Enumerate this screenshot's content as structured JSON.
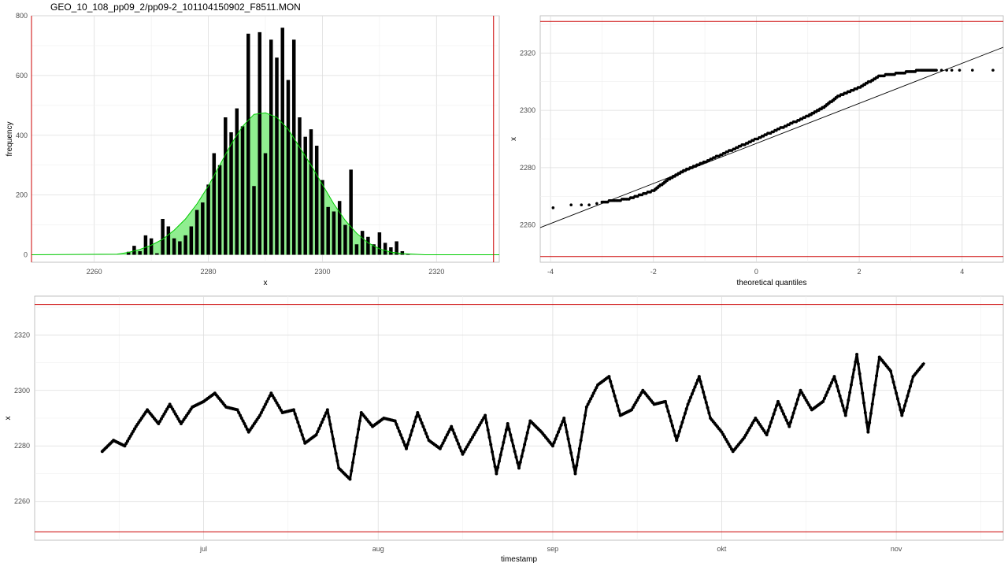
{
  "title": "GEO_10_108_pp09_2/pp09-2_101104150902_F8511.MON",
  "colors": {
    "limit": "#cc0000",
    "density_fill": "#90ee90",
    "density_line": "#00cc00",
    "points": "#000000",
    "grid": "#dddddd"
  },
  "chart_data": [
    {
      "type": "bar",
      "xlabel": "x",
      "ylabel": "frequency",
      "xlim": [
        2249,
        2331
      ],
      "ylim": [
        -25,
        800
      ],
      "xticks": [
        2260,
        2280,
        2300,
        2320
      ],
      "yticks": [
        0,
        200,
        400,
        600,
        800
      ],
      "limit_lines_x": [
        2249,
        2330
      ],
      "bins": [
        {
          "x": 2266,
          "y": 10
        },
        {
          "x": 2267,
          "y": 30
        },
        {
          "x": 2268,
          "y": 12
        },
        {
          "x": 2269,
          "y": 65
        },
        {
          "x": 2270,
          "y": 55
        },
        {
          "x": 2271,
          "y": 5
        },
        {
          "x": 2272,
          "y": 120
        },
        {
          "x": 2273,
          "y": 95
        },
        {
          "x": 2274,
          "y": 55
        },
        {
          "x": 2275,
          "y": 45
        },
        {
          "x": 2276,
          "y": 65
        },
        {
          "x": 2277,
          "y": 95
        },
        {
          "x": 2278,
          "y": 150
        },
        {
          "x": 2279,
          "y": 175
        },
        {
          "x": 2280,
          "y": 235
        },
        {
          "x": 2281,
          "y": 340
        },
        {
          "x": 2282,
          "y": 300
        },
        {
          "x": 2283,
          "y": 460
        },
        {
          "x": 2284,
          "y": 410
        },
        {
          "x": 2285,
          "y": 490
        },
        {
          "x": 2286,
          "y": 430
        },
        {
          "x": 2287,
          "y": 740
        },
        {
          "x": 2288,
          "y": 230
        },
        {
          "x": 2289,
          "y": 745
        },
        {
          "x": 2290,
          "y": 340
        },
        {
          "x": 2291,
          "y": 720
        },
        {
          "x": 2292,
          "y": 660
        },
        {
          "x": 2293,
          "y": 760
        },
        {
          "x": 2294,
          "y": 585
        },
        {
          "x": 2295,
          "y": 720
        },
        {
          "x": 2296,
          "y": 460
        },
        {
          "x": 2297,
          "y": 395
        },
        {
          "x": 2298,
          "y": 420
        },
        {
          "x": 2299,
          "y": 365
        },
        {
          "x": 2300,
          "y": 250
        },
        {
          "x": 2301,
          "y": 160
        },
        {
          "x": 2302,
          "y": 145
        },
        {
          "x": 2303,
          "y": 180
        },
        {
          "x": 2304,
          "y": 100
        },
        {
          "x": 2305,
          "y": 285
        },
        {
          "x": 2306,
          "y": 35
        },
        {
          "x": 2307,
          "y": 80
        },
        {
          "x": 2308,
          "y": 60
        },
        {
          "x": 2309,
          "y": 35
        },
        {
          "x": 2310,
          "y": 75
        },
        {
          "x": 2311,
          "y": 40
        },
        {
          "x": 2312,
          "y": 25
        },
        {
          "x": 2313,
          "y": 45
        },
        {
          "x": 2314,
          "y": 12
        },
        {
          "x": 2315,
          "y": 2
        }
      ],
      "density": {
        "x": [
          2249,
          2264,
          2266,
          2268,
          2270,
          2272,
          2274,
          2276,
          2278,
          2280,
          2282,
          2284,
          2286,
          2288,
          2290,
          2292,
          2294,
          2296,
          2298,
          2300,
          2302,
          2304,
          2306,
          2308,
          2310,
          2312,
          2314,
          2316,
          2318,
          2331
        ],
        "y": [
          0,
          2,
          8,
          18,
          32,
          52,
          82,
          120,
          170,
          230,
          300,
          370,
          430,
          470,
          475,
          460,
          420,
          360,
          300,
          235,
          170,
          115,
          72,
          40,
          20,
          9,
          4,
          2,
          0,
          0
        ]
      }
    },
    {
      "type": "scatter",
      "subtype": "qq",
      "xlabel": "theoretical quantiles",
      "ylabel": "x",
      "xlim": [
        -4.2,
        4.8
      ],
      "ylim": [
        2247,
        2333
      ],
      "xticks": [
        -4,
        -2,
        0,
        2,
        4
      ],
      "yticks": [
        2260,
        2280,
        2300,
        2320
      ],
      "limit_lines_y": [
        2249,
        2331
      ],
      "reference_line": {
        "x": [
          -4.5,
          4.8
        ],
        "y": [
          2257,
          2322
        ]
      },
      "quantile_curve": {
        "x": [
          -3.0,
          -2.5,
          -2.0,
          -1.7,
          -1.4,
          -1.0,
          -0.5,
          0.0,
          0.5,
          1.0,
          1.3,
          1.6,
          2.0,
          2.4,
          2.8,
          3.2,
          3.5
        ],
        "y": [
          2268,
          2269,
          2272,
          2276,
          2279,
          2282,
          2286,
          2290,
          2294,
          2298,
          2301,
          2305,
          2308,
          2312,
          2313,
          2314,
          2314
        ]
      },
      "tail_points": [
        {
          "x": -3.95,
          "y": 2266
        },
        {
          "x": -3.6,
          "y": 2267
        },
        {
          "x": -3.4,
          "y": 2267
        },
        {
          "x": -3.25,
          "y": 2267
        },
        {
          "x": -3.1,
          "y": 2267.5
        },
        {
          "x": 3.5,
          "y": 2314
        },
        {
          "x": 3.6,
          "y": 2314
        },
        {
          "x": 3.7,
          "y": 2314
        },
        {
          "x": 3.8,
          "y": 2314
        },
        {
          "x": 3.95,
          "y": 2314
        },
        {
          "x": 4.2,
          "y": 2314
        },
        {
          "x": 4.6,
          "y": 2314
        }
      ]
    },
    {
      "type": "line",
      "xlabel": "timestamp",
      "ylabel": "x",
      "xlim": [
        "2010-06-01",
        "2010-11-20"
      ],
      "ylim": [
        2246,
        2334
      ],
      "xticks": [
        {
          "label": "jul",
          "date": "2010-07-01"
        },
        {
          "label": "aug",
          "date": "2010-08-01"
        },
        {
          "label": "sep",
          "date": "2010-09-01"
        },
        {
          "label": "okt",
          "date": "2010-10-01"
        },
        {
          "label": "nov",
          "date": "2010-11-01"
        }
      ],
      "yticks": [
        2260,
        2280,
        2300,
        2320
      ],
      "limit_lines_y": [
        2249,
        2331
      ],
      "series": {
        "dates": [
          "2010-06-13",
          "2010-06-15",
          "2010-06-17",
          "2010-06-19",
          "2010-06-21",
          "2010-06-23",
          "2010-06-25",
          "2010-06-27",
          "2010-06-29",
          "2010-07-01",
          "2010-07-03",
          "2010-07-05",
          "2010-07-07",
          "2010-07-09",
          "2010-07-11",
          "2010-07-13",
          "2010-07-15",
          "2010-07-17",
          "2010-07-19",
          "2010-07-21",
          "2010-07-23",
          "2010-07-25",
          "2010-07-27",
          "2010-07-29",
          "2010-07-31",
          "2010-08-02",
          "2010-08-04",
          "2010-08-06",
          "2010-08-08",
          "2010-08-10",
          "2010-08-12",
          "2010-08-14",
          "2010-08-16",
          "2010-08-18",
          "2010-08-20",
          "2010-08-22",
          "2010-08-24",
          "2010-08-26",
          "2010-08-28",
          "2010-08-30",
          "2010-09-01",
          "2010-09-03",
          "2010-09-05",
          "2010-09-07",
          "2010-09-09",
          "2010-09-11",
          "2010-09-13",
          "2010-09-15",
          "2010-09-17",
          "2010-09-19",
          "2010-09-21",
          "2010-09-23",
          "2010-09-25",
          "2010-09-27",
          "2010-09-29",
          "2010-10-01",
          "2010-10-03",
          "2010-10-05",
          "2010-10-07",
          "2010-10-09",
          "2010-10-11",
          "2010-10-13",
          "2010-10-15",
          "2010-10-17",
          "2010-10-19",
          "2010-10-21",
          "2010-10-23",
          "2010-10-25",
          "2010-10-27",
          "2010-10-29",
          "2010-10-31",
          "2010-11-02",
          "2010-11-04",
          "2010-11-06"
        ],
        "values": [
          2278,
          2282,
          2280,
          2287,
          2293,
          2288,
          2295,
          2288,
          2294,
          2296,
          2299,
          2294,
          2293,
          2285,
          2291,
          2299,
          2292,
          2293,
          2281,
          2284,
          2293,
          2272,
          2268,
          2292,
          2287,
          2290,
          2289,
          2279,
          2292,
          2282,
          2279,
          2287,
          2277,
          2284,
          2291,
          2270,
          2288,
          2272,
          2289,
          2285,
          2280,
          2290,
          2270,
          2294,
          2302,
          2305,
          2291,
          2293,
          2300,
          2295,
          2296,
          2282,
          2295,
          2305,
          2290,
          2285,
          2278,
          2283,
          2290,
          2284,
          2296,
          2287,
          2300,
          2293,
          2296,
          2305,
          2291,
          2313,
          2285,
          2312,
          2307,
          2291,
          2305,
          2310
        ]
      }
    }
  ]
}
